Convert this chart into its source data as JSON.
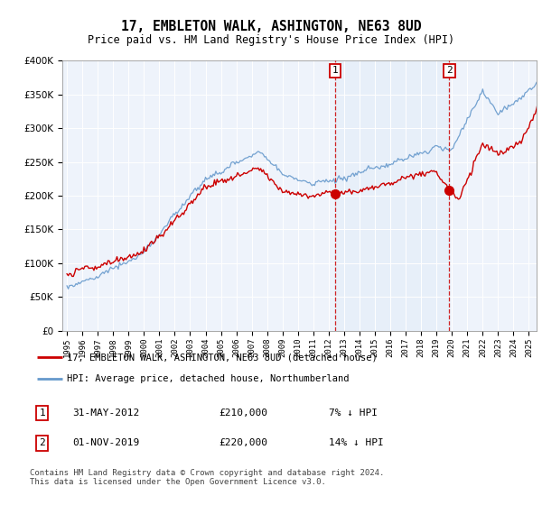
{
  "title": "17, EMBLETON WALK, ASHINGTON, NE63 8UD",
  "subtitle": "Price paid vs. HM Land Registry's House Price Index (HPI)",
  "legend_line1": "17, EMBLETON WALK, ASHINGTON, NE63 8UD (detached house)",
  "legend_line2": "HPI: Average price, detached house, Northumberland",
  "footer": "Contains HM Land Registry data © Crown copyright and database right 2024.\nThis data is licensed under the Open Government Licence v3.0.",
  "event1_date": "31-MAY-2012",
  "event1_price": "£210,000",
  "event1_hpi": "7% ↓ HPI",
  "event2_date": "01-NOV-2019",
  "event2_price": "£220,000",
  "event2_hpi": "14% ↓ HPI",
  "event1_x": 2012.42,
  "event2_x": 2019.83,
  "red_color": "#cc0000",
  "blue_color": "#6699cc",
  "blue_fill": "#dce9f8",
  "background_color": "#eef3fb",
  "ylim": [
    0,
    400000
  ],
  "xlim": [
    1994.7,
    2025.5
  ],
  "yticks": [
    0,
    50000,
    100000,
    150000,
    200000,
    250000,
    300000,
    350000,
    400000
  ]
}
